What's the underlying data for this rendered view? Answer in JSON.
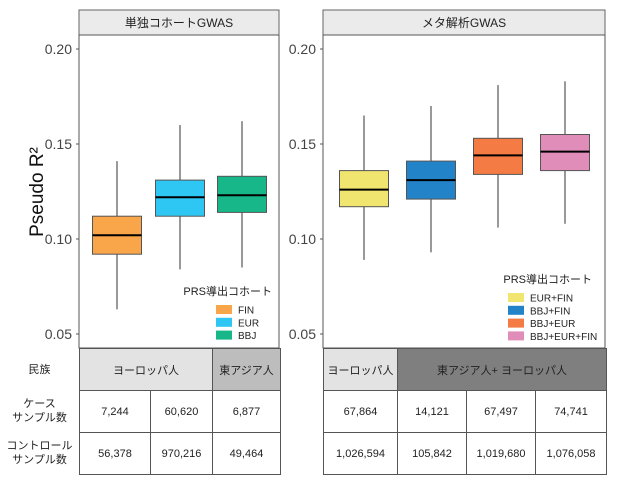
{
  "chart_data": [
    {
      "type": "box",
      "panel_title": "単独コホートGWAS",
      "ylabel": "Pseudo R²",
      "ylim": [
        0.045,
        0.21
      ],
      "yticks": [
        "0.05",
        "0.10",
        "0.15",
        "0.20"
      ],
      "grid": false,
      "legend": {
        "title": "PRS導出コホート",
        "placement": "bottom-right"
      },
      "series": [
        {
          "name": "FIN",
          "color": "#F9A54A",
          "whisker_low": 0.063,
          "q1": 0.092,
          "median": 0.102,
          "q3": 0.112,
          "whisker_high": 0.141
        },
        {
          "name": "EUR",
          "color": "#2EC7F4",
          "whisker_low": 0.084,
          "q1": 0.112,
          "median": 0.122,
          "q3": 0.131,
          "whisker_high": 0.16
        },
        {
          "name": "BBJ",
          "color": "#17B78A",
          "whisker_low": 0.085,
          "q1": 0.114,
          "median": 0.123,
          "q3": 0.133,
          "whisker_high": 0.162
        }
      ]
    },
    {
      "type": "box",
      "panel_title": "メタ解析GWAS",
      "ylim": [
        0.045,
        0.21
      ],
      "yticks": [
        "0.05",
        "0.10",
        "0.15",
        "0.20"
      ],
      "grid": false,
      "legend": {
        "title": "PRS導出コホート",
        "placement": "bottom-right"
      },
      "series": [
        {
          "name": "EUR+FIN",
          "color": "#F0E56E",
          "whisker_low": 0.089,
          "q1": 0.117,
          "median": 0.126,
          "q3": 0.136,
          "whisker_high": 0.165
        },
        {
          "name": "BBJ+FIN",
          "color": "#2283C8",
          "whisker_low": 0.093,
          "q1": 0.121,
          "median": 0.131,
          "q3": 0.141,
          "whisker_high": 0.17
        },
        {
          "name": "BBJ+EUR",
          "color": "#F47B43",
          "whisker_low": 0.106,
          "q1": 0.134,
          "median": 0.144,
          "q3": 0.153,
          "whisker_high": 0.181
        },
        {
          "name": "BBJ+EUR+FIN",
          "color": "#E18DBA",
          "whisker_low": 0.108,
          "q1": 0.136,
          "median": 0.146,
          "q3": 0.155,
          "whisker_high": 0.183
        }
      ]
    }
  ],
  "table": {
    "row_labels": {
      "ethnicity": "民族",
      "cases": [
        "ケース",
        "サンプル数"
      ],
      "controls": [
        "コントロール",
        "サンプル数"
      ]
    },
    "left": {
      "groups": [
        {
          "label": "ヨーロッパ人",
          "color": "#E3E3E3"
        },
        {
          "label": "東アジア人",
          "color": "#BDBDBD"
        }
      ],
      "cases": [
        "7,244",
        "60,620",
        "6,877"
      ],
      "controls": [
        "56,378",
        "970,216",
        "49,464"
      ]
    },
    "right": {
      "groups": [
        {
          "label": "ヨーロッパ人",
          "color": "#E3E3E3"
        },
        {
          "label": "東アジア人+ ヨーロッパ人",
          "color": "#7F7F7F"
        }
      ],
      "cases": [
        "67,864",
        "14,121",
        "67,497",
        "74,741"
      ],
      "controls": [
        "1,026,594",
        "105,842",
        "1,019,680",
        "1,076,058"
      ]
    }
  }
}
